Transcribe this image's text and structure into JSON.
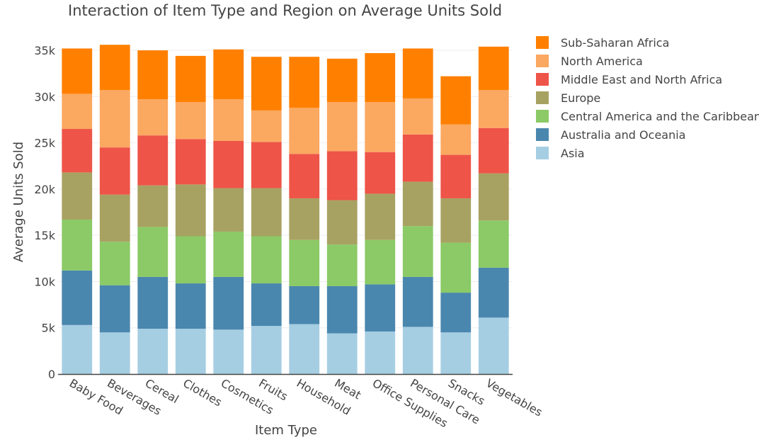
{
  "chart_data": {
    "type": "bar",
    "stacked": true,
    "title": "Interaction of Item Type and Region on Average Units Sold",
    "xlabel": "Item Type",
    "ylabel": "Average Units Sold",
    "ylim": [
      0,
      36000
    ],
    "yticks": [
      0,
      5000,
      10000,
      15000,
      20000,
      25000,
      30000,
      35000
    ],
    "ytick_labels": [
      "0",
      "5k",
      "10k",
      "15k",
      "20k",
      "25k",
      "30k",
      "35k"
    ],
    "grid": true,
    "legend_position": "right",
    "categories": [
      "Baby Food",
      "Beverages",
      "Cereal",
      "Clothes",
      "Cosmetics",
      "Fruits",
      "Household",
      "Meat",
      "Office Supplies",
      "Personal Care",
      "Snacks",
      "Vegetables"
    ],
    "series": [
      {
        "name": "Asia",
        "color": "#a6cee3",
        "values": [
          5300,
          4500,
          4900,
          4900,
          4800,
          5200,
          5400,
          4400,
          4600,
          5100,
          4500,
          6100
        ]
      },
      {
        "name": "Australia and Oceania",
        "color": "#4a87ae",
        "values": [
          5900,
          5100,
          5600,
          4900,
          5700,
          4600,
          4100,
          5100,
          5100,
          5400,
          4300,
          5400
        ]
      },
      {
        "name": "Central America and the Caribbean",
        "color": "#8bca66",
        "values": [
          5500,
          4700,
          5400,
          5100,
          4900,
          5100,
          5000,
          4500,
          4800,
          5500,
          5400,
          5100
        ]
      },
      {
        "name": "Europe",
        "color": "#a8a262",
        "values": [
          5100,
          5100,
          4500,
          5600,
          4700,
          5200,
          4500,
          4800,
          5000,
          4800,
          4800,
          5100
        ]
      },
      {
        "name": "Middle East and North Africa",
        "color": "#ee5448",
        "values": [
          4700,
          5100,
          5400,
          4900,
          5100,
          5000,
          4800,
          5300,
          4500,
          5100,
          4700,
          4900
        ]
      },
      {
        "name": "North America",
        "color": "#fba861",
        "values": [
          3800,
          6200,
          3900,
          4000,
          4500,
          3400,
          5000,
          5300,
          5400,
          3900,
          3300,
          4100
        ]
      },
      {
        "name": "Sub-Saharan Africa",
        "color": "#ff8000",
        "values": [
          4900,
          4900,
          5300,
          5000,
          5400,
          5800,
          5500,
          4700,
          5300,
          5400,
          5200,
          4700
        ]
      }
    ]
  }
}
